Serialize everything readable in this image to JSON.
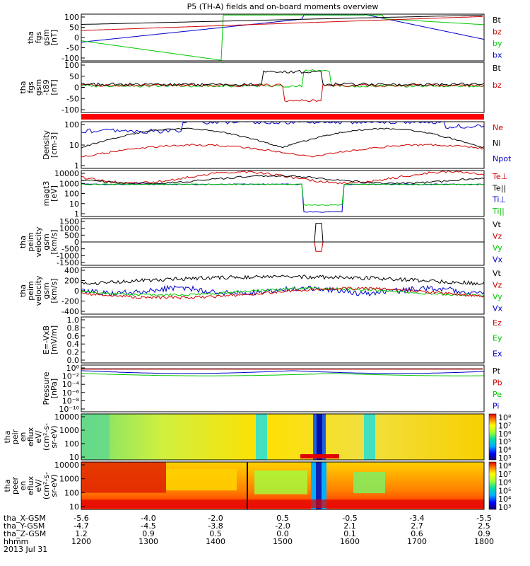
{
  "title": "P5 (TH-A) fields and on-board moments overview",
  "colors": {
    "black": "#000000",
    "red": "#d00000",
    "green": "#00c800",
    "blue": "#0000c8",
    "flag": "#ff0000"
  },
  "chart_data": [
    {
      "type": "line",
      "panel": "fgs",
      "ylabel": [
        "tha",
        "fgs",
        "gsm",
        "[nT]"
      ],
      "yticks": [
        "100",
        "50",
        "0",
        "-50",
        "-100"
      ],
      "ylim": [
        -100,
        100
      ],
      "legend": [
        {
          "label": "Bt",
          "color": "black"
        },
        {
          "label": "bz",
          "color": "red"
        },
        {
          "label": "by",
          "color": "green"
        },
        {
          "label": "bx",
          "color": "blue"
        }
      ]
    },
    {
      "type": "line",
      "panel": "fgs_t89",
      "ylabel": [
        "tha",
        "fgs",
        "gsm",
        "-t89",
        "[nT]"
      ],
      "yticks": [
        "100",
        "50",
        "0",
        "-50",
        "-100"
      ],
      "ylim": [
        -125,
        100
      ],
      "legend": [
        {
          "label": "Bt",
          "color": "black"
        },
        {
          "label": "bz",
          "color": "red"
        }
      ]
    },
    {
      "type": "line",
      "panel": "density",
      "ylabel": [
        "Density",
        "[cm-3]"
      ],
      "yticks": [
        "100",
        "10",
        "1"
      ],
      "log": true,
      "legend": [
        {
          "label": "Ne",
          "color": "red"
        },
        {
          "label": "Ni",
          "color": "black"
        },
        {
          "label": "Npot",
          "color": "blue"
        }
      ]
    },
    {
      "type": "line",
      "panel": "temp",
      "ylabel": [
        "magt3",
        "[eV]"
      ],
      "yticks": [
        "10000",
        "1000",
        "100",
        "10",
        "1"
      ],
      "log": true,
      "legend": [
        {
          "label": "Te⊥",
          "color": "red"
        },
        {
          "label": "Te||",
          "color": "black"
        },
        {
          "label": "Ti⊥",
          "color": "blue"
        },
        {
          "label": "Ti||",
          "color": "green"
        }
      ]
    },
    {
      "type": "line",
      "panel": "peim_vel1",
      "ylabel": [
        "tha",
        "peim",
        "velocity",
        "gsm",
        "[km/s]"
      ],
      "yticks": [
        "1500",
        "1000",
        "500",
        "0",
        "-500",
        "-1000",
        "-1500"
      ],
      "ylim": [
        -1500,
        1500
      ],
      "legend": [
        {
          "label": "Vt",
          "color": "black"
        },
        {
          "label": "Vz",
          "color": "red"
        },
        {
          "label": "Vy",
          "color": "green"
        },
        {
          "label": "Vx",
          "color": "blue"
        }
      ]
    },
    {
      "type": "line",
      "panel": "peim_vel2",
      "ylabel": [
        "tha",
        "peim",
        "velocity",
        "gsm",
        "[km/s]"
      ],
      "yticks": [
        "400",
        "200",
        "0",
        "-200",
        "-400"
      ],
      "ylim": [
        -400,
        400
      ],
      "legend": [
        {
          "label": "Vt",
          "color": "black"
        },
        {
          "label": "Vz",
          "color": "red"
        },
        {
          "label": "Vy",
          "color": "green"
        },
        {
          "label": "Vx",
          "color": "blue"
        }
      ]
    },
    {
      "type": "line",
      "panel": "efield",
      "ylabel": [
        "E=-VxB",
        "[mV/m]"
      ],
      "yticks": [
        "1.0",
        "0.8",
        "0.6",
        "0.4",
        "0.2",
        "0.0"
      ],
      "ylim": [
        0,
        1
      ],
      "legend": [
        {
          "label": "Ez",
          "color": "red"
        },
        {
          "label": "Ey",
          "color": "green"
        },
        {
          "label": "Ex",
          "color": "blue"
        }
      ]
    },
    {
      "type": "line",
      "panel": "pressure",
      "ylabel": [
        "Pressure",
        "[nPa]"
      ],
      "yticks": [
        "10⁰",
        "10⁻²",
        "10⁻⁴",
        "10⁻⁶",
        "10⁻⁸",
        "10⁻¹⁰"
      ],
      "log": true,
      "legend": [
        {
          "label": "Pt",
          "color": "black"
        },
        {
          "label": "Pb",
          "color": "red"
        },
        {
          "label": "Pe",
          "color": "green"
        },
        {
          "label": "Pi",
          "color": "blue"
        }
      ]
    },
    {
      "type": "heatmap",
      "panel": "peir",
      "ylabel": [
        "tha",
        "peir",
        "en",
        "eflux",
        "eV/",
        "(cm²-s-",
        "sr-eV)"
      ],
      "yticks": [
        "10000",
        "1000",
        "100",
        "10"
      ],
      "cbar": [
        "10⁸",
        "10⁷",
        "10⁶",
        "10⁵",
        "10⁴",
        "10³"
      ]
    },
    {
      "type": "heatmap",
      "panel": "peer",
      "ylabel": [
        "tha",
        "peer",
        "en",
        "eflux",
        "eV/",
        "(cm²-s-",
        "sr-eV)"
      ],
      "yticks": [
        "10000",
        "1000",
        "100",
        "10"
      ],
      "cbar": [
        "10⁸",
        "10⁷",
        "10⁶",
        "10⁵",
        "10⁴",
        "10³"
      ]
    }
  ],
  "xaxis": {
    "rows": [
      {
        "label": "tha_X-GSM",
        "values": [
          "-5.6",
          "-4.0",
          "-2.0",
          "0.5",
          "-0.5",
          "-3.4",
          "-5.5"
        ]
      },
      {
        "label": "tha_Y-GSM",
        "values": [
          "-4.7",
          "-4.5",
          "-3.8",
          "-2.0",
          "2.1",
          "2.7",
          "2.5"
        ]
      },
      {
        "label": "tha_Z-GSM",
        "values": [
          "1.2",
          "0.9",
          "0.5",
          "0.0",
          "0.1",
          "0.6",
          "0.9"
        ]
      },
      {
        "label": "hhmm",
        "values": [
          "1200",
          "1300",
          "1400",
          "1500",
          "1600",
          "1700",
          "1800"
        ]
      }
    ],
    "date": "2013 Jul 31"
  }
}
